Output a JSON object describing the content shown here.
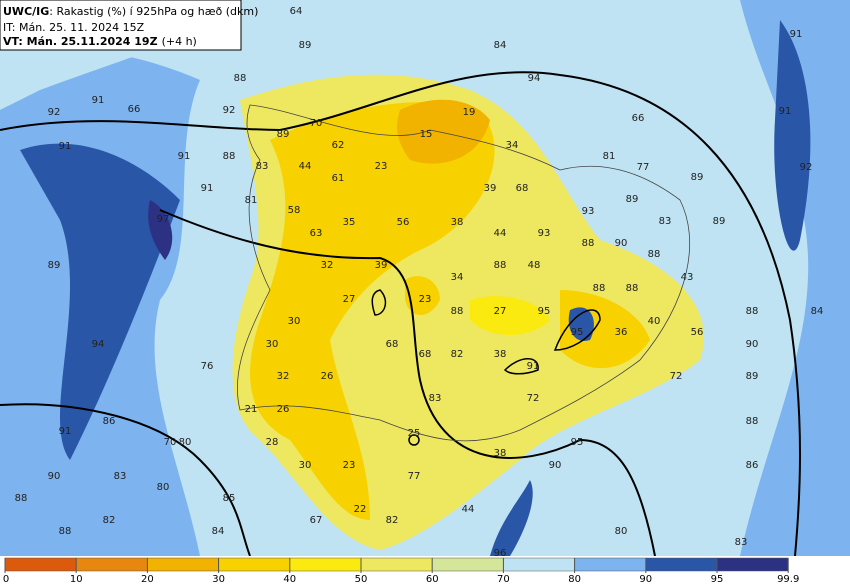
{
  "header": {
    "model": "UWC/IG",
    "description": ": Rakastig (%) í 925hPa og hæð (dkm)",
    "issue_time": "IT: Mán. 25. 11. 2024 15Z",
    "valid_time": "VT: Mán. 25.11.2024 19Z",
    "lead": "(+4 h)"
  },
  "map": {
    "labels": [
      64,
      84,
      91,
      89,
      88,
      94,
      91,
      92,
      66,
      92,
      70,
      19,
      66,
      91,
      89,
      15,
      62,
      34,
      91,
      91,
      88,
      83,
      44,
      23,
      81,
      77,
      92,
      61,
      91,
      39,
      68,
      89,
      81,
      58,
      89,
      97,
      35,
      56,
      38,
      93,
      83,
      89,
      63,
      44,
      93,
      88,
      90,
      89,
      32,
      39,
      34,
      88,
      48,
      88,
      43,
      27,
      23,
      88,
      27,
      95,
      88,
      88,
      84,
      88,
      30,
      95,
      36,
      40,
      56,
      94,
      30,
      68,
      68,
      82,
      38,
      90,
      76,
      32,
      26,
      91,
      72,
      89,
      83,
      72,
      21,
      26,
      91,
      86,
      88,
      70,
      80,
      25,
      95,
      28,
      30,
      23,
      38,
      90,
      90,
      83,
      86,
      80,
      77,
      22,
      44,
      85,
      88,
      67,
      82,
      88,
      82,
      84,
      80,
      83,
      96
    ]
  },
  "colorbar": {
    "ticks": [
      0,
      10,
      20,
      30,
      40,
      50,
      60,
      70,
      80,
      90,
      95,
      99.9
    ],
    "colors": [
      "#dc5a0c",
      "#e8870f",
      "#f2b200",
      "#f8d200",
      "#fbea10",
      "#eee860",
      "#d4e69a",
      "#bfe3f2",
      "#7db4ef",
      "#2a56a8",
      "#2c3184"
    ]
  }
}
